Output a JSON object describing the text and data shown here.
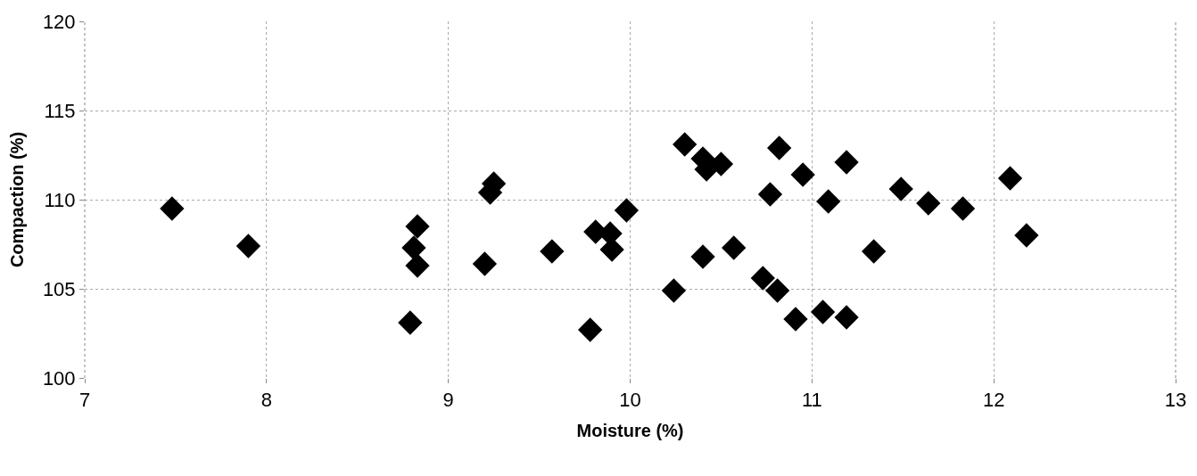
{
  "chart_data": {
    "type": "scatter",
    "xlabel": "Moisture (%)",
    "ylabel": "Compaction (%)",
    "x": [
      7.48,
      7.9,
      8.83,
      8.81,
      8.83,
      8.79,
      9.25,
      9.23,
      9.2,
      9.57,
      9.81,
      9.89,
      9.9,
      9.98,
      10.24,
      10.3,
      10.4,
      10.42,
      10.5,
      10.4,
      10.57,
      10.73,
      10.81,
      10.77,
      10.82,
      10.91,
      10.95,
      11.09,
      11.06,
      11.19,
      11.19,
      11.34,
      11.49,
      11.64,
      11.83,
      12.09,
      12.18,
      9.78
    ],
    "values": [
      109.5,
      107.4,
      108.5,
      107.3,
      106.3,
      103.1,
      110.9,
      110.4,
      106.4,
      107.1,
      108.2,
      108.1,
      107.2,
      109.4,
      104.9,
      113.1,
      112.3,
      111.7,
      112.0,
      106.8,
      107.3,
      105.6,
      104.9,
      110.3,
      112.9,
      103.3,
      111.4,
      109.9,
      103.7,
      103.4,
      112.1,
      107.1,
      110.6,
      109.8,
      109.5,
      111.2,
      108.0,
      102.7
    ],
    "color": "#000000",
    "marker": "diamond",
    "grid": true,
    "xlim": [
      7,
      13
    ],
    "xticks": [
      7,
      8,
      9,
      10,
      11,
      12,
      13
    ],
    "ylim": [
      100,
      120
    ],
    "yticks": [
      100,
      105,
      110,
      115,
      120
    ]
  }
}
